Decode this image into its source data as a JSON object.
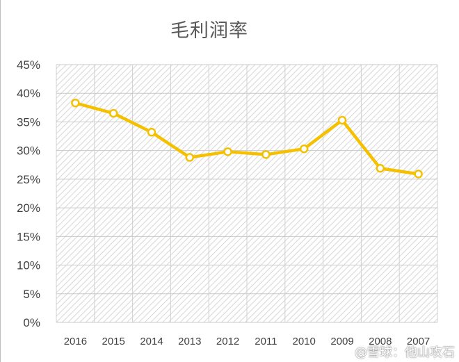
{
  "chart_data": {
    "type": "line",
    "title": "毛利润率",
    "xlabel": "",
    "ylabel": "",
    "categories": [
      "2016",
      "2015",
      "2014",
      "2013",
      "2012",
      "2011",
      "2010",
      "2009",
      "2008",
      "2007"
    ],
    "series": [
      {
        "values": [
          38.3,
          36.5,
          33.2,
          28.8,
          29.8,
          29.3,
          30.3,
          35.3,
          26.9,
          25.9
        ]
      }
    ],
    "yticks": [
      "0%",
      "5%",
      "10%",
      "15%",
      "20%",
      "25%",
      "30%",
      "35%",
      "40%",
      "45%"
    ],
    "ylim": [
      0,
      45
    ],
    "unit": "%",
    "grid": true,
    "legend": "none",
    "line_color": "#f5c000",
    "marker_fill": "#ffffff"
  },
  "watermark": "@雪球：他山攻石"
}
